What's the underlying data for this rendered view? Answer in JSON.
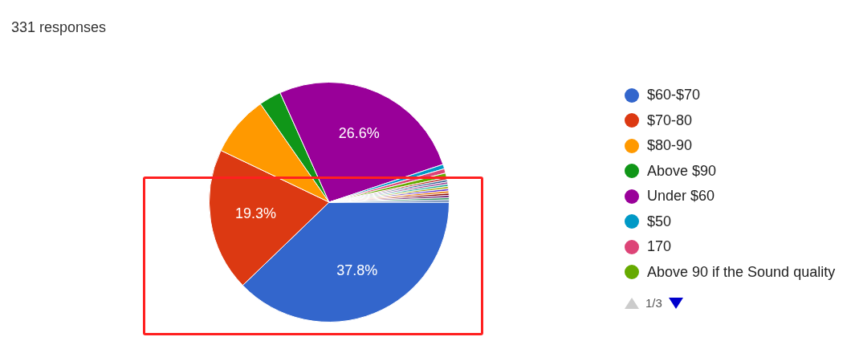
{
  "chart_data": {
    "type": "pie",
    "subtitle": "331 responses",
    "categories": [
      "$60-$70",
      "$70-80",
      "$80-90",
      "Above $90",
      "Under $60",
      "$50",
      "170",
      "Above 90 if the Sound quality",
      null,
      null,
      null,
      null,
      null,
      null,
      null,
      null,
      null,
      null,
      null
    ],
    "values": [
      37.8,
      19.3,
      8.2,
      3.0,
      26.6,
      0.6,
      0.6,
      0.6,
      0.3,
      0.3,
      0.3,
      0.3,
      0.3,
      0.3,
      0.3,
      0.3,
      0.3,
      0.3,
      0.3
    ],
    "colors": [
      "#3366cc",
      "#dc3912",
      "#ff9900",
      "#109618",
      "#990099",
      "#0099c6",
      "#dd4477",
      "#66aa00",
      "#b82e2e",
      "#316395",
      "#994499",
      "#22aa99",
      "#aaaa11",
      "#6633cc",
      "#e67300",
      "#8b0707",
      "#651067",
      "#329262",
      "#5574a6"
    ],
    "value_labels": [
      "37.8%",
      "19.3%",
      null,
      null,
      "26.6%",
      null,
      null,
      null,
      null,
      null,
      null,
      null,
      null,
      null,
      null,
      null,
      null,
      null,
      null
    ],
    "legend": "right",
    "annotations": [
      "1/3"
    ]
  }
}
